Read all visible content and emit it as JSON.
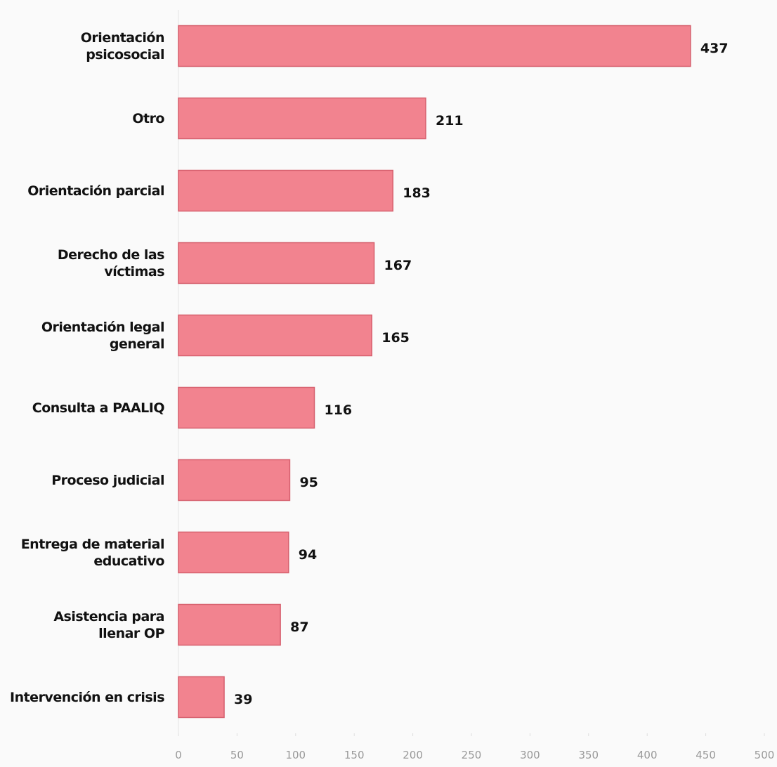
{
  "chart_data": {
    "type": "bar",
    "orientation": "horizontal",
    "categories": [
      "Orientación psicosocial",
      "Otro",
      "Orientación parcial",
      "Derecho de las víctimas",
      "Orientación legal general",
      "Consulta a PAALIQ",
      "Proceso judicial",
      "Entrega de material educativo",
      "Asistencia para llenar OP",
      "Intervención en crisis"
    ],
    "values": [
      437,
      211,
      183,
      167,
      165,
      116,
      95,
      94,
      87,
      39
    ],
    "color": "#f2838f",
    "xlim": [
      0,
      500
    ],
    "xticks": [
      0,
      50,
      100,
      150,
      200,
      250,
      300,
      350,
      400,
      450,
      500
    ],
    "grid": false
  }
}
